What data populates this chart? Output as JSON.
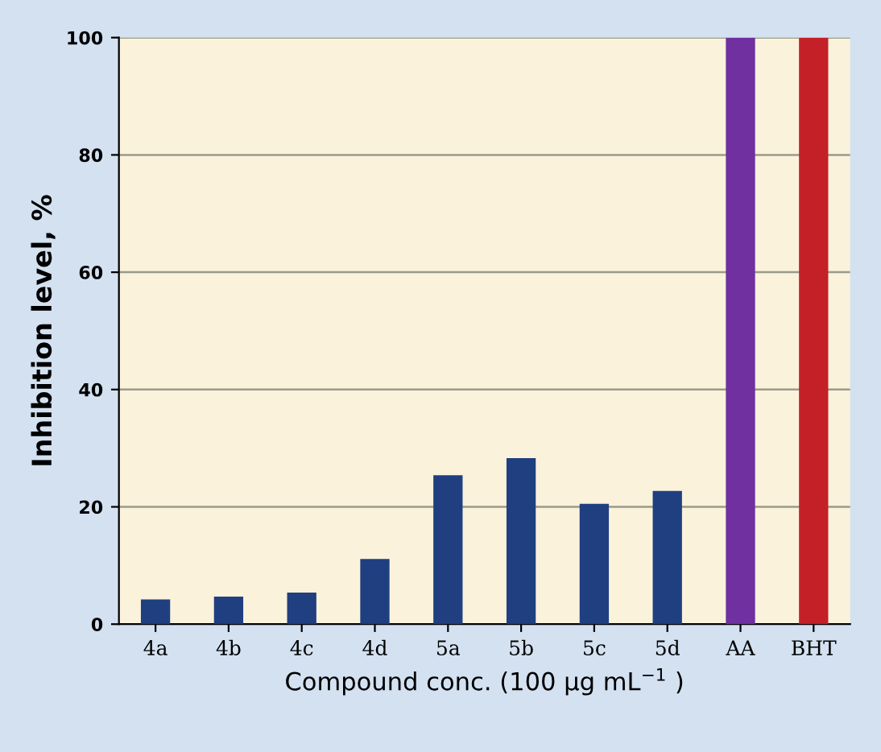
{
  "chart_data": {
    "type": "bar",
    "xlabel": "Compound conc. (100 µg mL$^{−1}$ )",
    "ylabel": "Inhibition level, %",
    "categories": [
      "4a",
      "4b",
      "4c",
      "4d",
      "5a",
      "5b",
      "5c",
      "5d",
      "AA",
      "BHT"
    ],
    "values": [
      4.2,
      4.7,
      5.4,
      11.1,
      25.4,
      28.3,
      20.5,
      22.7,
      100,
      100
    ],
    "colors": [
      "#1f3f80",
      "#1f3f80",
      "#1f3f80",
      "#1f3f80",
      "#1f3f80",
      "#1f3f80",
      "#1f3f80",
      "#1f3f80",
      "#7030a0",
      "#c42028"
    ],
    "ylim": [
      0,
      100
    ],
    "yticks": [
      0,
      20,
      40,
      60,
      80,
      100
    ],
    "grid": "y",
    "legend": false
  }
}
